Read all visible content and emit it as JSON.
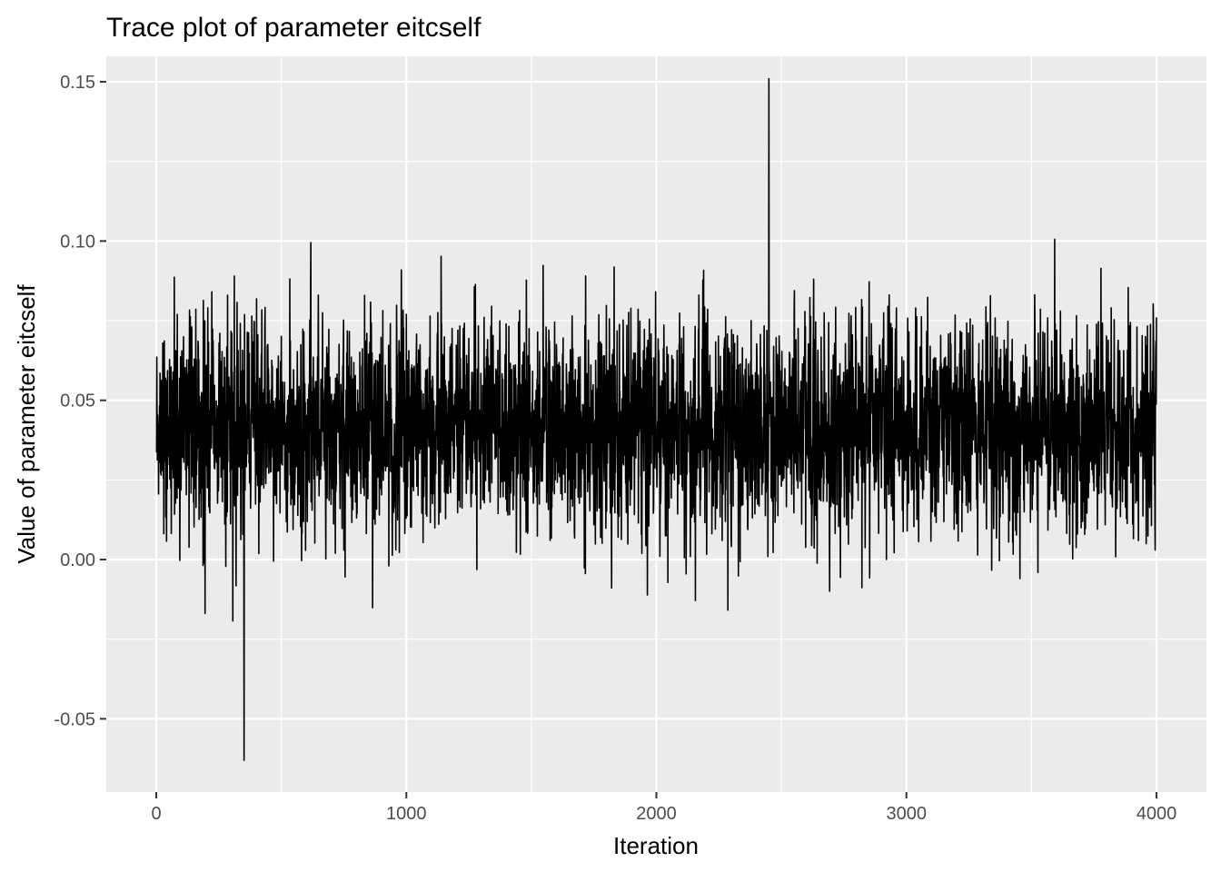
{
  "chart_data": {
    "type": "line",
    "title": "Trace plot of parameter eitcself",
    "xlabel": "Iteration",
    "ylabel": "Value of parameter eitcself",
    "xlim": [
      -200,
      4200
    ],
    "ylim": [
      -0.073,
      0.158
    ],
    "x_ticks": [
      0,
      1000,
      2000,
      3000,
      4000
    ],
    "x_tick_labels": [
      "0",
      "1000",
      "2000",
      "3000",
      "4000"
    ],
    "y_ticks": [
      -0.05,
      0.0,
      0.05,
      0.1,
      0.15
    ],
    "y_tick_labels": [
      "-0.05",
      "0.00",
      "0.05",
      "0.10",
      "0.15"
    ],
    "grid": true,
    "legend": "none",
    "panel_color": "#ebebeb",
    "grid_color": "#ffffff",
    "line_color": "#000000",
    "series": [
      {
        "iterations": [
          1,
          4000
        ],
        "mean": 0.042,
        "sd": 0.017,
        "min": -0.063,
        "max": 0.151
      }
    ]
  }
}
